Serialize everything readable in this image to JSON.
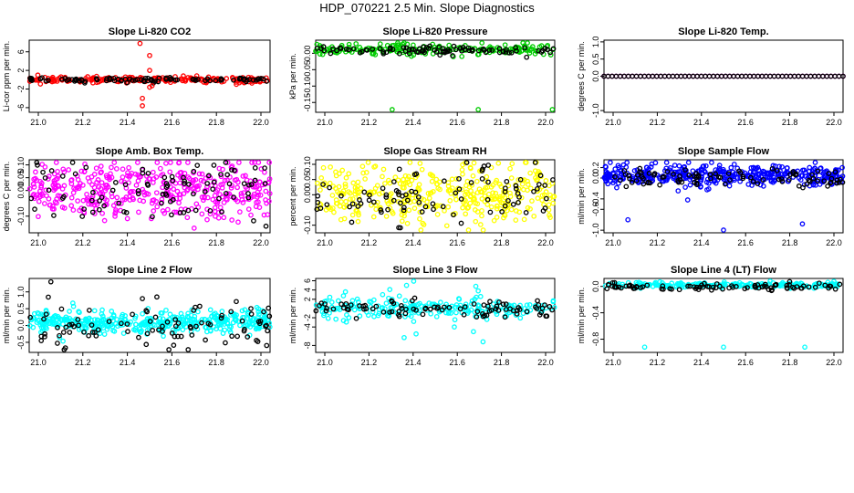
{
  "figure_title": "HDP_070221  2.5 Min. Slope Diagnostics",
  "colors": {
    "observed": "#000000"
  },
  "chart_data": [
    {
      "type": "scatter",
      "title": "Slope Li-820 CO2",
      "xlabel": "",
      "ylabel": "Li-cor ppm per min.",
      "xlim": [
        21.0,
        22.0
      ],
      "ylim": [
        -7,
        8.5
      ],
      "xticks": [
        "21.0",
        "21.2",
        "21.4",
        "21.6",
        "21.8",
        "22.0"
      ],
      "yticks": [
        -6,
        -2,
        2,
        6
      ],
      "ytick_labels": [
        "-6",
        "-2",
        "2",
        "6"
      ],
      "color": "#ff0000",
      "series": [
        {
          "name": "band",
          "color": "#ff0000",
          "center": 0.0,
          "spread": 0.35,
          "count": 200
        },
        {
          "name": "band-observed",
          "color": "#000000",
          "center": 0.0,
          "spread": 0.25,
          "count": 90
        },
        {
          "name": "outliers",
          "color": "#ff0000",
          "x": [
            21.46,
            21.47,
            21.47,
            21.5,
            21.5,
            21.51,
            21.5,
            21.86
          ],
          "y": [
            7.8,
            -4.0,
            -5.6,
            5.2,
            -1.6,
            -1.3,
            2.0,
            -1.0
          ]
        }
      ]
    },
    {
      "type": "scatter",
      "title": "Slope Li-820 Pressure",
      "xlabel": "",
      "ylabel": "kPa per min.",
      "xlim": [
        21.0,
        22.0
      ],
      "ylim": [
        -0.18,
        0.04
      ],
      "xticks": [
        "21.0",
        "21.2",
        "21.4",
        "21.6",
        "21.8",
        "22.0"
      ],
      "yticks": [
        0.0,
        -0.05,
        -0.1,
        -0.15
      ],
      "ytick_labels": [
        "0.00",
        "-0.05",
        "-0.10",
        "-0.15"
      ],
      "color": "#00cc00",
      "series": [
        {
          "name": "band",
          "color": "#00cc00",
          "center": 0.012,
          "spread": 0.009,
          "count": 200
        },
        {
          "name": "band-observed",
          "color": "#000000",
          "center": 0.008,
          "spread": 0.006,
          "count": 90
        },
        {
          "name": "outliers",
          "color": "#00cc00",
          "x": [
            21.32,
            21.68,
            21.99,
            21.37
          ],
          "y": [
            -0.175,
            -0.175,
            -0.175,
            0.035
          ]
        }
      ]
    },
    {
      "type": "scatter",
      "title": "Slope Li-820 Temp.",
      "xlabel": "",
      "ylabel": "degrees C per min.",
      "xlim": [
        21.0,
        22.0
      ],
      "ylim": [
        -1.05,
        1.05
      ],
      "xticks": [
        "21.0",
        "21.2",
        "21.4",
        "21.6",
        "21.8",
        "22.0"
      ],
      "yticks": [
        -1.0,
        0.0,
        0.5,
        1.0
      ],
      "ytick_labels": [
        "-1.0",
        "0.0",
        "0.5",
        "1.0"
      ],
      "color": "#ff00ff",
      "series": [
        {
          "name": "line",
          "color": "#ff00ff",
          "center": 0.0,
          "spread": 0.0,
          "count": 60,
          "even": true
        },
        {
          "name": "line-observed",
          "color": "#000000",
          "center": 0.0,
          "spread": 0.0,
          "count": 60,
          "even": true
        }
      ]
    },
    {
      "type": "scatter",
      "title": "Slope Amb. Box Temp.",
      "xlabel": "",
      "ylabel": "degrees C per min.",
      "xlim": [
        21.0,
        22.0
      ],
      "ylim": [
        -0.165,
        0.12
      ],
      "xticks": [
        "21.0",
        "21.2",
        "21.4",
        "21.6",
        "21.8",
        "22.0"
      ],
      "yticks": [
        -0.1,
        0.0,
        0.05,
        0.1
      ],
      "ytick_labels": [
        "-0.10",
        "0.00",
        "0.05",
        "0.10"
      ],
      "color": "#ff00ff",
      "series": [
        {
          "name": "band",
          "color": "#ff00ff",
          "center": 0.0,
          "spread": 0.055,
          "count": 420
        },
        {
          "name": "band-observed",
          "color": "#000000",
          "center": 0.0,
          "spread": 0.06,
          "count": 90
        }
      ]
    },
    {
      "type": "scatter",
      "title": "Slope Gas Stream RH",
      "xlabel": "",
      "ylabel": "percent per min.",
      "xlim": [
        21.0,
        22.0
      ],
      "ylim": [
        -0.125,
        0.115
      ],
      "xticks": [
        "21.0",
        "21.2",
        "21.4",
        "21.6",
        "21.8",
        "22.0"
      ],
      "yticks": [
        -0.1,
        0.0,
        0.05,
        0.1
      ],
      "ytick_labels": [
        "-0.10",
        "0.00",
        "0.05",
        "0.10"
      ],
      "color": "#ffff00",
      "series": [
        {
          "name": "band",
          "color": "#ffff00",
          "center": 0.0,
          "spread": 0.045,
          "count": 380
        },
        {
          "name": "band-observed",
          "color": "#000000",
          "center": 0.0,
          "spread": 0.05,
          "count": 90
        }
      ]
    },
    {
      "type": "scatter",
      "title": "Slope Sample Flow",
      "xlabel": "",
      "ylabel": "ml/min per min.",
      "xlim": [
        21.0,
        22.0
      ],
      "ylim": [
        -1.05,
        0.35
      ],
      "xticks": [
        "21.0",
        "21.2",
        "21.4",
        "21.6",
        "21.8",
        "22.0"
      ],
      "yticks": [
        -1.0,
        -0.6,
        -0.4,
        0.0,
        0.2
      ],
      "ytick_labels": [
        "-1.0",
        "-0.6",
        "-0.4",
        "0.0",
        "0.2"
      ],
      "color": "#0000ff",
      "series": [
        {
          "name": "band",
          "color": "#0000ff",
          "center": 0.05,
          "spread": 0.1,
          "count": 420
        },
        {
          "name": "band-observed",
          "color": "#000000",
          "center": 0.0,
          "spread": 0.09,
          "count": 90
        },
        {
          "name": "outliers",
          "color": "#0000ff",
          "x": [
            21.1,
            21.5,
            21.83,
            21.35,
            21.45
          ],
          "y": [
            -0.8,
            -1.0,
            -0.88,
            -0.42,
            0.32
          ]
        }
      ]
    },
    {
      "type": "scatter",
      "title": "Slope Line 2 Flow",
      "xlabel": "",
      "ylabel": "ml/min per min.",
      "xlim": [
        21.0,
        22.0
      ],
      "ylim": [
        -0.8,
        1.4
      ],
      "xticks": [
        "21.0",
        "21.2",
        "21.4",
        "21.6",
        "21.8",
        "22.0"
      ],
      "yticks": [
        -0.5,
        0.0,
        0.5,
        1.0
      ],
      "ytick_labels": [
        "-0.5",
        "0.0",
        "0.5",
        "1.0"
      ],
      "color": "#00ffff",
      "series": [
        {
          "name": "band",
          "color": "#00ffff",
          "center": 0.1,
          "spread": 0.16,
          "count": 420
        },
        {
          "name": "band-observed",
          "color": "#000000",
          "center": 0.0,
          "spread": 0.32,
          "count": 90
        },
        {
          "name": "outliers",
          "color": "#000000",
          "x": [
            21.09,
            21.47,
            21.53,
            21.58,
            21.66,
            21.05
          ],
          "y": [
            1.3,
            0.8,
            0.85,
            -0.75,
            -0.78,
            -0.45
          ]
        }
      ]
    },
    {
      "type": "scatter",
      "title": "Slope Line 3 Flow",
      "xlabel": "",
      "ylabel": "ml/min per min.",
      "xlim": [
        21.0,
        22.0
      ],
      "ylim": [
        -9.5,
        6.5
      ],
      "xticks": [
        "21.0",
        "21.2",
        "21.4",
        "21.6",
        "21.8",
        "22.0"
      ],
      "yticks": [
        -8,
        -4,
        -2,
        2,
        4,
        6
      ],
      "ytick_labels": [
        "-8",
        "-4",
        "-2",
        "2",
        "4",
        "6"
      ],
      "color": "#00ffff",
      "series": [
        {
          "name": "band",
          "color": "#00ffff",
          "center": 0.0,
          "spread": 1.0,
          "count": 220
        },
        {
          "name": "band-observed",
          "color": "#000000",
          "center": 0.0,
          "spread": 0.9,
          "count": 90
        },
        {
          "name": "outliers",
          "color": "#00ffff",
          "x": [
            21.28,
            21.31,
            21.35,
            21.38,
            21.41,
            21.37,
            21.42,
            21.58,
            21.67,
            21.68,
            21.69,
            21.7,
            21.66,
            21.41
          ],
          "y": [
            3.0,
            4.1,
            2.7,
            5.0,
            6.2,
            -6.3,
            -5.5,
            -4.0,
            4.8,
            3.8,
            2.6,
            -7.2,
            -5.0,
            -2.8
          ]
        }
      ]
    },
    {
      "type": "scatter",
      "title": "Slope Line 4 (LT) Flow",
      "xlabel": "",
      "ylabel": "ml/min per min.",
      "xlim": [
        21.0,
        22.0
      ],
      "ylim": [
        -1.0,
        0.12
      ],
      "xticks": [
        "21.0",
        "21.2",
        "21.4",
        "21.6",
        "21.8",
        "22.0"
      ],
      "yticks": [
        -0.8,
        -0.4,
        0.0
      ],
      "ytick_labels": [
        "-0.8",
        "-0.4",
        "0.0"
      ],
      "color": "#00ffff",
      "series": [
        {
          "name": "band",
          "color": "#00ffff",
          "center": 0.02,
          "spread": 0.02,
          "count": 220
        },
        {
          "name": "band-observed",
          "color": "#000000",
          "center": 0.0,
          "spread": 0.03,
          "count": 90
        },
        {
          "name": "outliers",
          "color": "#00ffff",
          "x": [
            21.17,
            21.5,
            21.84
          ],
          "y": [
            -0.92,
            -0.92,
            -0.92
          ]
        }
      ]
    }
  ]
}
